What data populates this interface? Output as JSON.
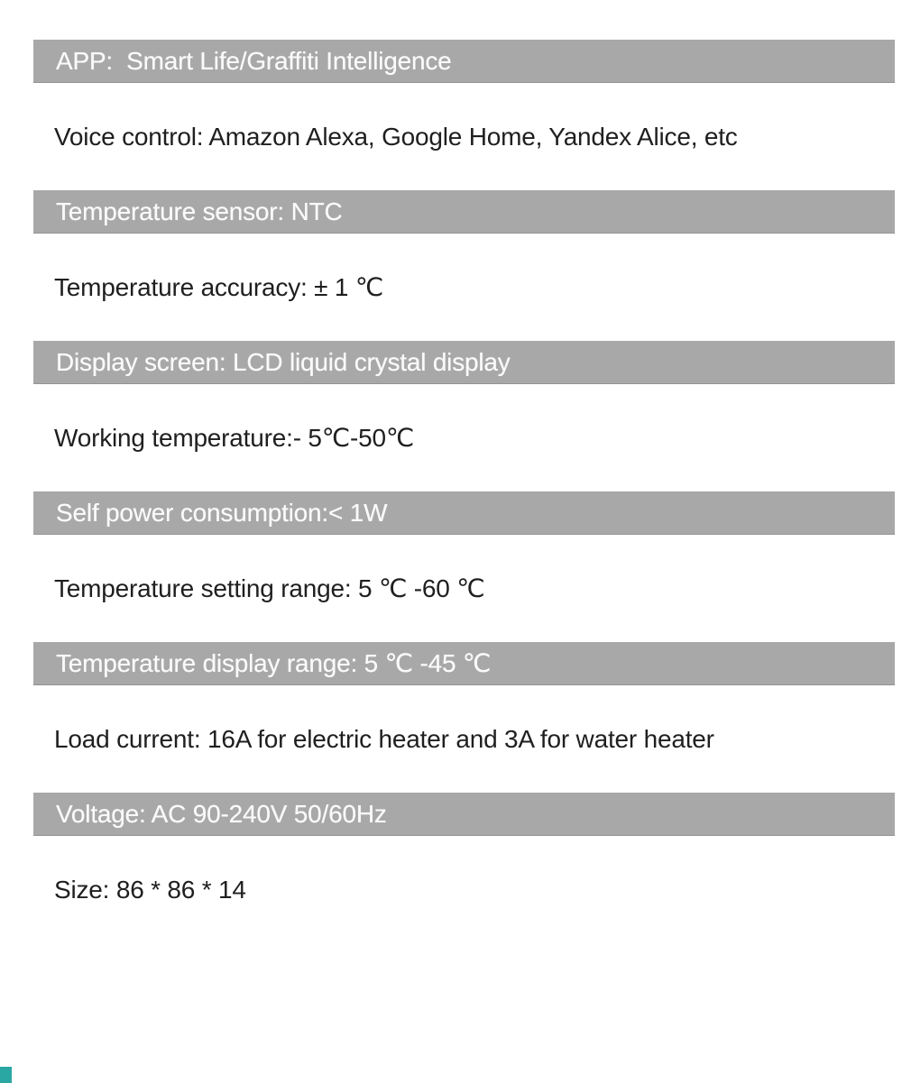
{
  "page": {
    "type": "product-specification-sheet",
    "colors": {
      "band_background": "#a8a8a8",
      "band_text": "#fafafa",
      "body_text": "#1f1f1f",
      "page_background": "#ffffff",
      "corner_accent": "#2aa7a3"
    },
    "rows": [
      {
        "style": "band",
        "label": "APP:  Smart Life/Graffiti Intelligence"
      },
      {
        "style": "plain",
        "label": "Voice control: Amazon Alexa, Google Home, Yandex Alice, etc"
      },
      {
        "style": "band",
        "label": "Temperature sensor: NTC"
      },
      {
        "style": "plain",
        "label": "Temperature accuracy: ± 1 ℃"
      },
      {
        "style": "band",
        "label": "Display screen: LCD liquid crystal display"
      },
      {
        "style": "plain",
        "label": "Working temperature:- 5℃-50℃"
      },
      {
        "style": "band",
        "label": "Self power consumption:< 1W"
      },
      {
        "style": "plain",
        "label": "Temperature setting range: 5 ℃ -60 ℃"
      },
      {
        "style": "band",
        "label": "Temperature display range: 5 ℃ -45 ℃"
      },
      {
        "style": "plain",
        "label": "Load current: 16A for electric heater and 3A for water heater"
      },
      {
        "style": "band",
        "label": "Voltage: AC 90-240V 50/60Hz"
      },
      {
        "style": "plain",
        "label": "Size: 86 * 86 * 14"
      }
    ]
  }
}
